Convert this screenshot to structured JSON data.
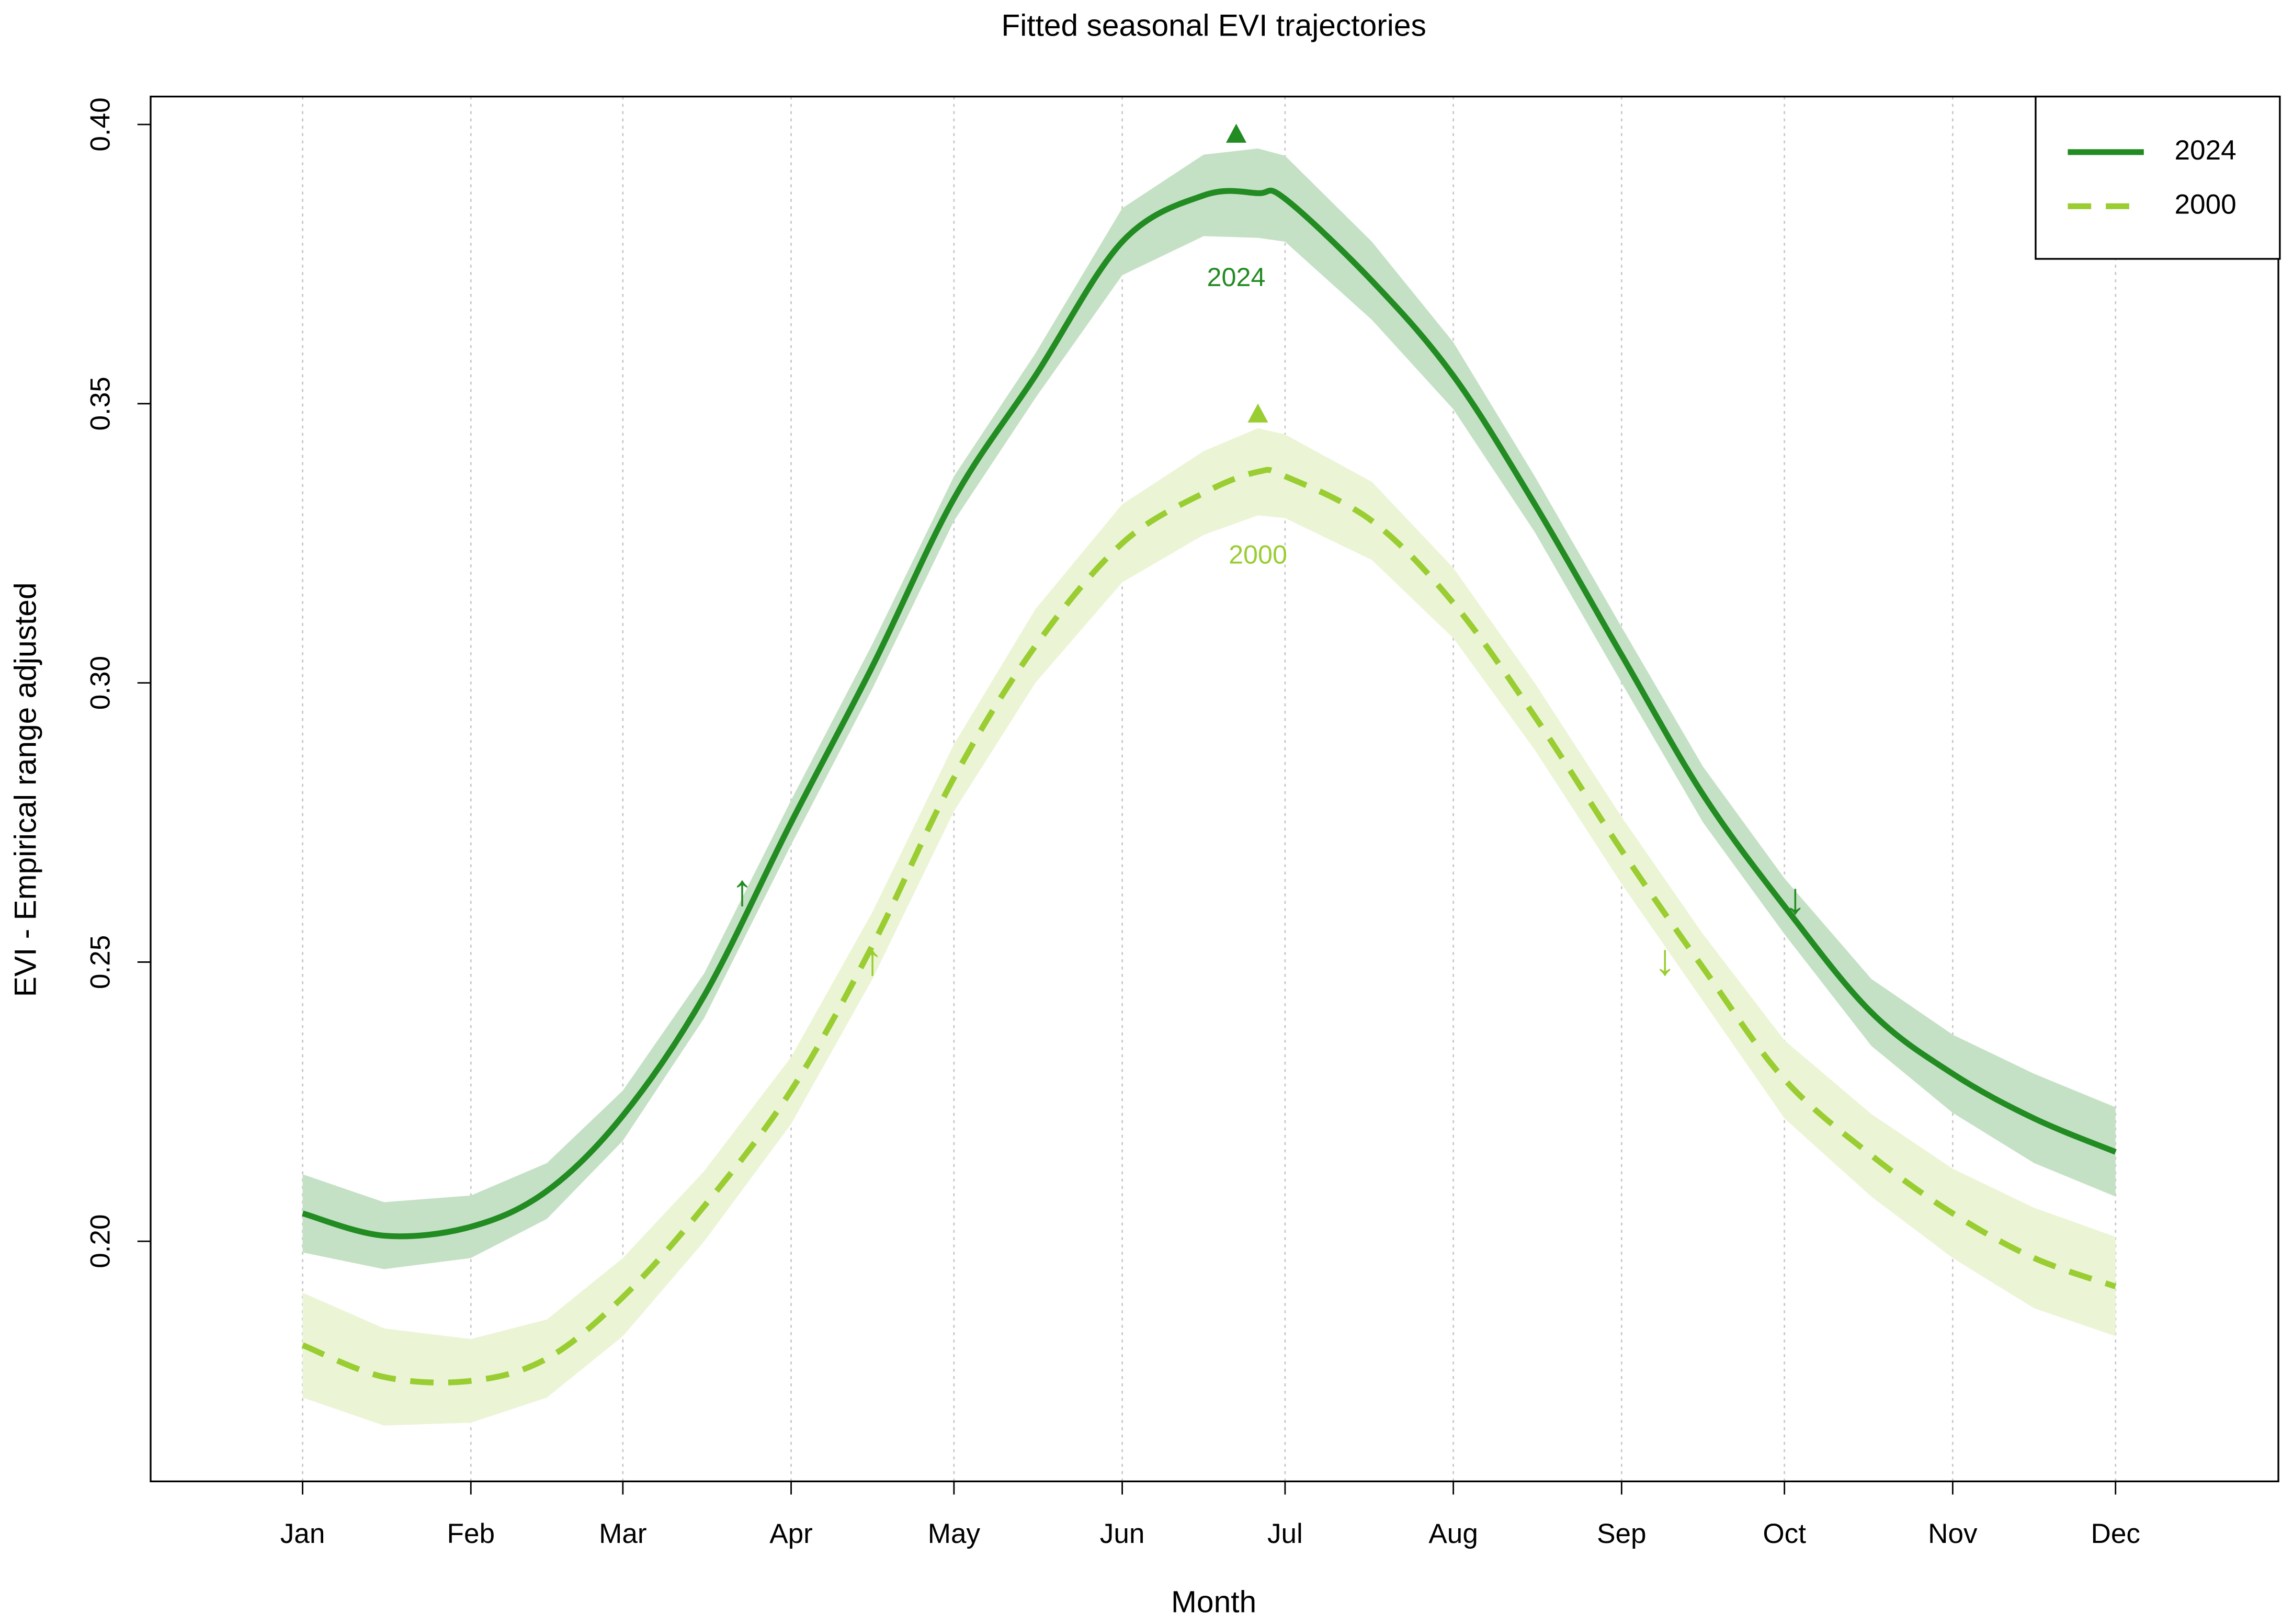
{
  "chart_data": {
    "type": "line",
    "title": "Fitted seasonal EVI trajectories",
    "xlabel": "Month",
    "ylabel": "EVI - Empirical range adjusted",
    "x": [
      1,
      16,
      32,
      46,
      60,
      75,
      91,
      106,
      121,
      136,
      152,
      167,
      177,
      182,
      198,
      213,
      228,
      244,
      259,
      274,
      290,
      305,
      320,
      335
    ],
    "series": [
      {
        "name": "2024",
        "color": "#228b22",
        "band_color": "#c5e1c5",
        "dash": "solid",
        "values": [
          0.205,
          0.201,
          0.2026,
          0.209,
          0.2225,
          0.244,
          0.275,
          0.303,
          0.333,
          0.355,
          0.379,
          0.3873,
          0.3877,
          0.3867,
          0.372,
          0.355,
          0.332,
          0.305,
          0.28,
          0.26,
          0.241,
          0.23,
          0.222,
          0.216
        ],
        "lower": [
          0.198,
          0.195,
          0.197,
          0.204,
          0.218,
          0.24,
          0.271,
          0.299,
          0.329,
          0.351,
          0.373,
          0.38,
          0.3797,
          0.379,
          0.365,
          0.349,
          0.327,
          0.3,
          0.275,
          0.255,
          0.235,
          0.223,
          0.214,
          0.208
        ],
        "upper": [
          0.212,
          0.207,
          0.2082,
          0.214,
          0.227,
          0.248,
          0.279,
          0.307,
          0.337,
          0.359,
          0.385,
          0.3946,
          0.3957,
          0.3944,
          0.379,
          0.361,
          0.337,
          0.31,
          0.285,
          0.265,
          0.247,
          0.237,
          0.23,
          0.224
        ]
      },
      {
        "name": "2000",
        "color": "#9acd32",
        "band_color": "#ebf5d6",
        "dash": "dashed",
        "values": [
          0.1814,
          0.1757,
          0.175,
          0.179,
          0.19,
          0.2063,
          0.227,
          0.253,
          0.283,
          0.3066,
          0.325,
          0.334,
          0.3378,
          0.337,
          0.329,
          0.3143,
          0.294,
          0.27,
          0.249,
          0.229,
          0.2154,
          0.205,
          0.197,
          0.1919
        ],
        "lower": [
          0.172,
          0.167,
          0.1675,
          0.172,
          0.183,
          0.2,
          0.221,
          0.247,
          0.277,
          0.3,
          0.318,
          0.3265,
          0.33,
          0.3295,
          0.322,
          0.308,
          0.288,
          0.264,
          0.243,
          0.222,
          0.208,
          0.197,
          0.188,
          0.183
        ],
        "upper": [
          0.1908,
          0.1844,
          0.1825,
          0.186,
          0.197,
          0.2126,
          0.233,
          0.259,
          0.289,
          0.3132,
          0.332,
          0.3415,
          0.3456,
          0.3445,
          0.336,
          0.3206,
          0.3,
          0.276,
          0.255,
          0.236,
          0.2228,
          0.213,
          0.206,
          0.2008
        ]
      }
    ],
    "peaks": [
      {
        "x": 173,
        "y": 0.3983,
        "label": "2024",
        "label_y": 0.3723,
        "series": 0
      },
      {
        "x": 177,
        "y": 0.3482,
        "label": "2000",
        "label_y": 0.3226,
        "series": 1
      }
    ],
    "arrows": [
      {
        "x": 82,
        "y": 0.2623,
        "label": "↑",
        "series": 0
      },
      {
        "x": 106,
        "y": 0.2498,
        "label": "↑",
        "series": 1
      },
      {
        "x": 252,
        "y": 0.2498,
        "label": "↓",
        "series": 1
      },
      {
        "x": 276,
        "y": 0.2608,
        "label": "↓",
        "series": 0
      }
    ],
    "xlim": [
      -27,
      365
    ],
    "ylim": [
      0.157,
      0.405
    ],
    "xticks": [
      {
        "value": 1,
        "label": "Jan"
      },
      {
        "value": 32,
        "label": "Feb"
      },
      {
        "value": 60,
        "label": "Mar"
      },
      {
        "value": 91,
        "label": "Apr"
      },
      {
        "value": 121,
        "label": "May"
      },
      {
        "value": 152,
        "label": "Jun"
      },
      {
        "value": 182,
        "label": "Jul"
      },
      {
        "value": 213,
        "label": "Aug"
      },
      {
        "value": 244,
        "label": "Sep"
      },
      {
        "value": 274,
        "label": "Oct"
      },
      {
        "value": 305,
        "label": "Nov"
      },
      {
        "value": 335,
        "label": "Dec"
      }
    ],
    "yticks": [
      {
        "value": 0.2,
        "label": "0.20"
      },
      {
        "value": 0.25,
        "label": "0.25"
      },
      {
        "value": 0.3,
        "label": "0.30"
      },
      {
        "value": 0.35,
        "label": "0.35"
      },
      {
        "value": 0.4,
        "label": "0.40"
      }
    ],
    "grid": "x",
    "legend": "topright"
  }
}
